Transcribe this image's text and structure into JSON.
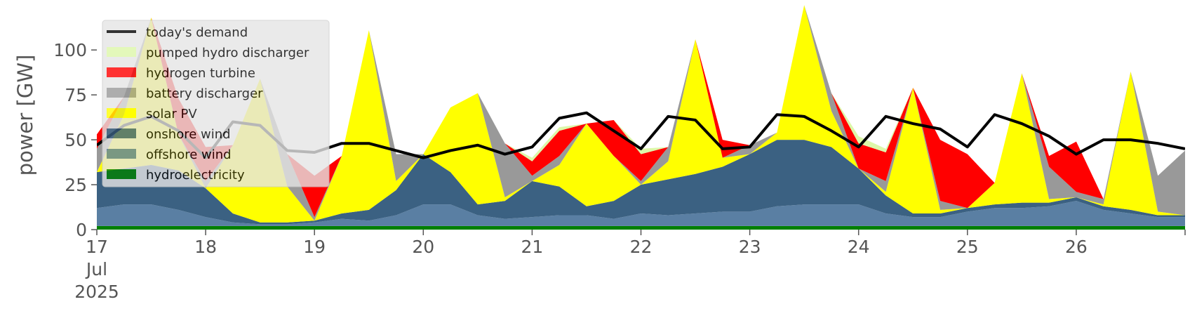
{
  "chart_data": {
    "type": "area",
    "stacked": true,
    "ylabel": "power [GW]",
    "ylim": [
      0,
      120
    ],
    "yticks": [
      0,
      25,
      50,
      75,
      100
    ],
    "xlim": [
      "2025-07-17T00:00",
      "2025-07-27T00:00"
    ],
    "x_tick_labels": [
      {
        "date": "2025-07-17",
        "lines": [
          "17",
          "Jul",
          "2025"
        ]
      },
      {
        "date": "2025-07-18",
        "lines": [
          "18"
        ]
      },
      {
        "date": "2025-07-19",
        "lines": [
          "19"
        ]
      },
      {
        "date": "2025-07-20",
        "lines": [
          "20"
        ]
      },
      {
        "date": "2025-07-21",
        "lines": [
          "21"
        ]
      },
      {
        "date": "2025-07-22",
        "lines": [
          "22"
        ]
      },
      {
        "date": "2025-07-23",
        "lines": [
          "23"
        ]
      },
      {
        "date": "2025-07-24",
        "lines": [
          "24"
        ]
      },
      {
        "date": "2025-07-25",
        "lines": [
          "25"
        ]
      },
      {
        "date": "2025-07-26",
        "lines": [
          "26"
        ]
      }
    ],
    "grid": false,
    "legend_position": "top-left",
    "x": [
      "2025-07-17 00:00",
      "2025-07-17 06:00",
      "2025-07-17 12:00",
      "2025-07-17 18:00",
      "2025-07-18 00:00",
      "2025-07-18 06:00",
      "2025-07-18 12:00",
      "2025-07-18 18:00",
      "2025-07-19 00:00",
      "2025-07-19 06:00",
      "2025-07-19 12:00",
      "2025-07-19 18:00",
      "2025-07-20 00:00",
      "2025-07-20 06:00",
      "2025-07-20 12:00",
      "2025-07-20 18:00",
      "2025-07-21 00:00",
      "2025-07-21 06:00",
      "2025-07-21 12:00",
      "2025-07-21 18:00",
      "2025-07-22 00:00",
      "2025-07-22 06:00",
      "2025-07-22 12:00",
      "2025-07-22 18:00",
      "2025-07-23 00:00",
      "2025-07-23 06:00",
      "2025-07-23 12:00",
      "2025-07-23 18:00",
      "2025-07-24 00:00",
      "2025-07-24 06:00",
      "2025-07-24 12:00",
      "2025-07-24 18:00",
      "2025-07-25 00:00",
      "2025-07-25 06:00",
      "2025-07-25 12:00",
      "2025-07-25 18:00",
      "2025-07-26 00:00",
      "2025-07-26 06:00",
      "2025-07-26 12:00",
      "2025-07-26 18:00",
      "2025-07-27 00:00"
    ],
    "series": [
      {
        "name": "hydroelectricity",
        "color": "#008000",
        "values": [
          2,
          2,
          2,
          2,
          2,
          2,
          2,
          2,
          2,
          2,
          2,
          2,
          2,
          2,
          2,
          2,
          2,
          2,
          2,
          2,
          2,
          2,
          2,
          2,
          2,
          2,
          2,
          2,
          2,
          2,
          2,
          2,
          2,
          2,
          2,
          2,
          2,
          2,
          2,
          2,
          2
        ]
      },
      {
        "name": "offshore wind",
        "color": "#5a7fa3",
        "values": [
          10,
          12,
          12,
          9,
          5,
          2,
          1,
          1,
          2,
          4,
          3,
          6,
          12,
          12,
          6,
          4,
          5,
          6,
          6,
          4,
          7,
          6,
          7,
          8,
          8,
          11,
          12,
          12,
          12,
          7,
          5,
          5,
          8,
          10,
          10,
          11,
          14,
          9,
          7,
          5,
          5
        ]
      },
      {
        "name": "onshore wind",
        "color": "#3b6182",
        "values": [
          20,
          20,
          22,
          22,
          16,
          5,
          1,
          1,
          1,
          3,
          6,
          14,
          28,
          18,
          6,
          10,
          20,
          16,
          5,
          10,
          16,
          20,
          22,
          25,
          32,
          37,
          36,
          32,
          20,
          10,
          2,
          2,
          2,
          2,
          3,
          2,
          2,
          2,
          2,
          1,
          1
        ]
      },
      {
        "name": "solar PV",
        "color": "#ffff00",
        "values": [
          0,
          30,
          82,
          20,
          0,
          38,
          80,
          20,
          0,
          32,
          100,
          5,
          0,
          36,
          62,
          2,
          0,
          12,
          46,
          25,
          0,
          10,
          75,
          5,
          0,
          4,
          75,
          20,
          0,
          2,
          70,
          2,
          0,
          12,
          72,
          2,
          0,
          1,
          77,
          2,
          0
        ]
      },
      {
        "name": "battery discharger",
        "color": "#999999",
        "values": [
          13,
          10,
          0,
          0,
          4,
          0,
          0,
          18,
          2,
          0,
          0,
          15,
          0,
          0,
          0,
          30,
          3,
          5,
          0,
          0,
          2,
          8,
          0,
          0,
          5,
          0,
          0,
          10,
          0,
          6,
          0,
          5,
          0,
          0,
          0,
          18,
          3,
          3,
          0,
          20,
          36
        ]
      },
      {
        "name": "hydrogen turbine",
        "color": "#ff0000",
        "values": [
          8,
          0,
          0,
          20,
          19,
          0,
          0,
          0,
          23,
          0,
          0,
          0,
          0,
          0,
          0,
          0,
          8,
          14,
          0,
          20,
          15,
          0,
          0,
          10,
          0,
          0,
          0,
          0,
          14,
          16,
          0,
          34,
          30,
          0,
          0,
          6,
          28,
          0,
          0,
          0,
          0
        ]
      },
      {
        "name": "pumped hydro discharger",
        "color": "#ddf7a9",
        "values": [
          0,
          0,
          0,
          0,
          0,
          0,
          0,
          0,
          0,
          0,
          0,
          0,
          0,
          0,
          0,
          0,
          2,
          2,
          0,
          0,
          3,
          0,
          0,
          0,
          0,
          0,
          0,
          0,
          4,
          2,
          0,
          0,
          0,
          0,
          0,
          0,
          0,
          0,
          0,
          0,
          0
        ]
      }
    ],
    "demand": {
      "name": "today's demand",
      "color": "#000000",
      "values": [
        47,
        58,
        63,
        55,
        40,
        60,
        58,
        44,
        43,
        48,
        48,
        44,
        40,
        44,
        47,
        42,
        46,
        62,
        65,
        55,
        45,
        63,
        61,
        45,
        46,
        64,
        63,
        55,
        46,
        63,
        59,
        56,
        46,
        64,
        59,
        52,
        42,
        50,
        50,
        48,
        45
      ]
    },
    "legend": [
      "today's demand",
      "pumped hydro discharger",
      "hydrogen turbine",
      "battery discharger",
      "solar PV",
      "onshore wind",
      "offshore wind",
      "hydroelectricity"
    ]
  }
}
